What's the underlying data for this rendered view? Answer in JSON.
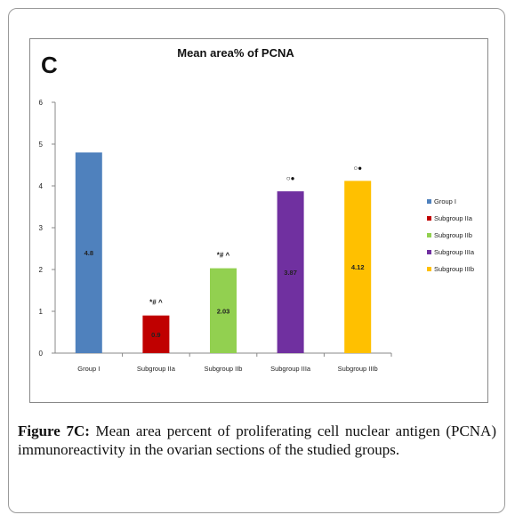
{
  "panel_letter": "C",
  "chart_data": {
    "type": "bar",
    "title": "Mean area% of PCNA",
    "categories": [
      "Group I",
      "Subgroup IIa",
      "Subgroup IIb",
      "Subgroup IIIa",
      "Subgroup IIIb"
    ],
    "values": [
      4.8,
      0.9,
      2.03,
      3.87,
      4.12
    ],
    "data_labels": [
      "4.8",
      "0.9",
      "2.03",
      "3.87",
      "4.12"
    ],
    "annotations": [
      "",
      "*# ^",
      "*# ^",
      "○●",
      "○●"
    ],
    "colors": [
      "#4f81bd",
      "#c00000",
      "#92d050",
      "#7030a0",
      "#ffc000"
    ],
    "ylim": [
      0,
      6
    ],
    "yticks": [
      "0",
      "1",
      "2",
      "3",
      "4",
      "5",
      "6"
    ],
    "xlabel": "",
    "ylabel": "",
    "grid": false,
    "legend": {
      "position": "right",
      "entries": [
        "Group I",
        "Subgroup IIa",
        "Subgroup IIb",
        "Subgroup IIIa",
        "Subgroup IIIb"
      ]
    }
  },
  "caption": {
    "label": "Figure 7C:",
    "text": " Mean area percent of proliferating cell nuclear antigen (PCNA) immunoreactivity in the ovarian sections of the studied groups."
  }
}
